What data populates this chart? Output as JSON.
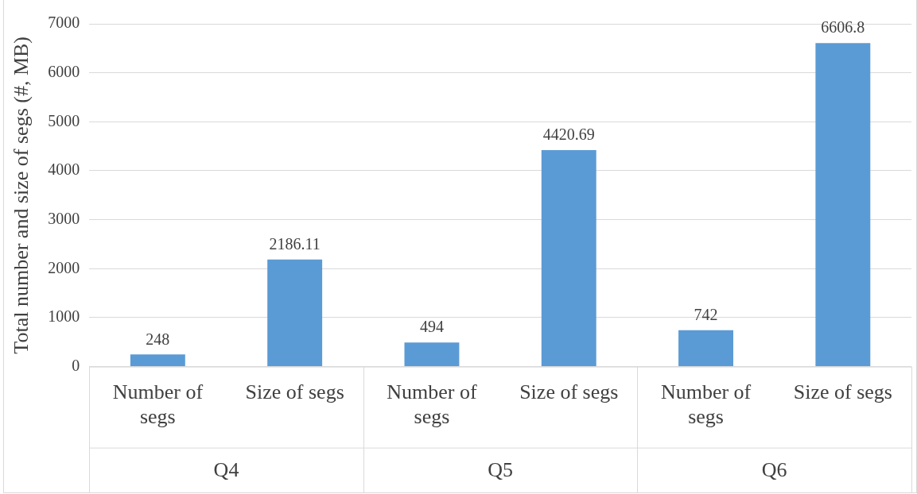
{
  "chart_data": {
    "type": "bar",
    "ylabel": "Total number and size of segs (#, MB)",
    "categories": [
      "Number of segs",
      "Size of segs",
      "Number of segs",
      "Size of segs",
      "Number of segs",
      "Size of segs"
    ],
    "values": [
      248,
      2186.11,
      494,
      4420.69,
      742,
      6606.8
    ],
    "color": "#5b9bd5",
    "ylim": [
      0,
      7000
    ],
    "yticks": [
      0,
      1000,
      2000,
      3000,
      4000,
      5000,
      6000,
      7000
    ],
    "grid": "y",
    "legend": false,
    "data_labels": true,
    "annotations": [
      "Q4",
      "Q5",
      "Q6"
    ]
  }
}
